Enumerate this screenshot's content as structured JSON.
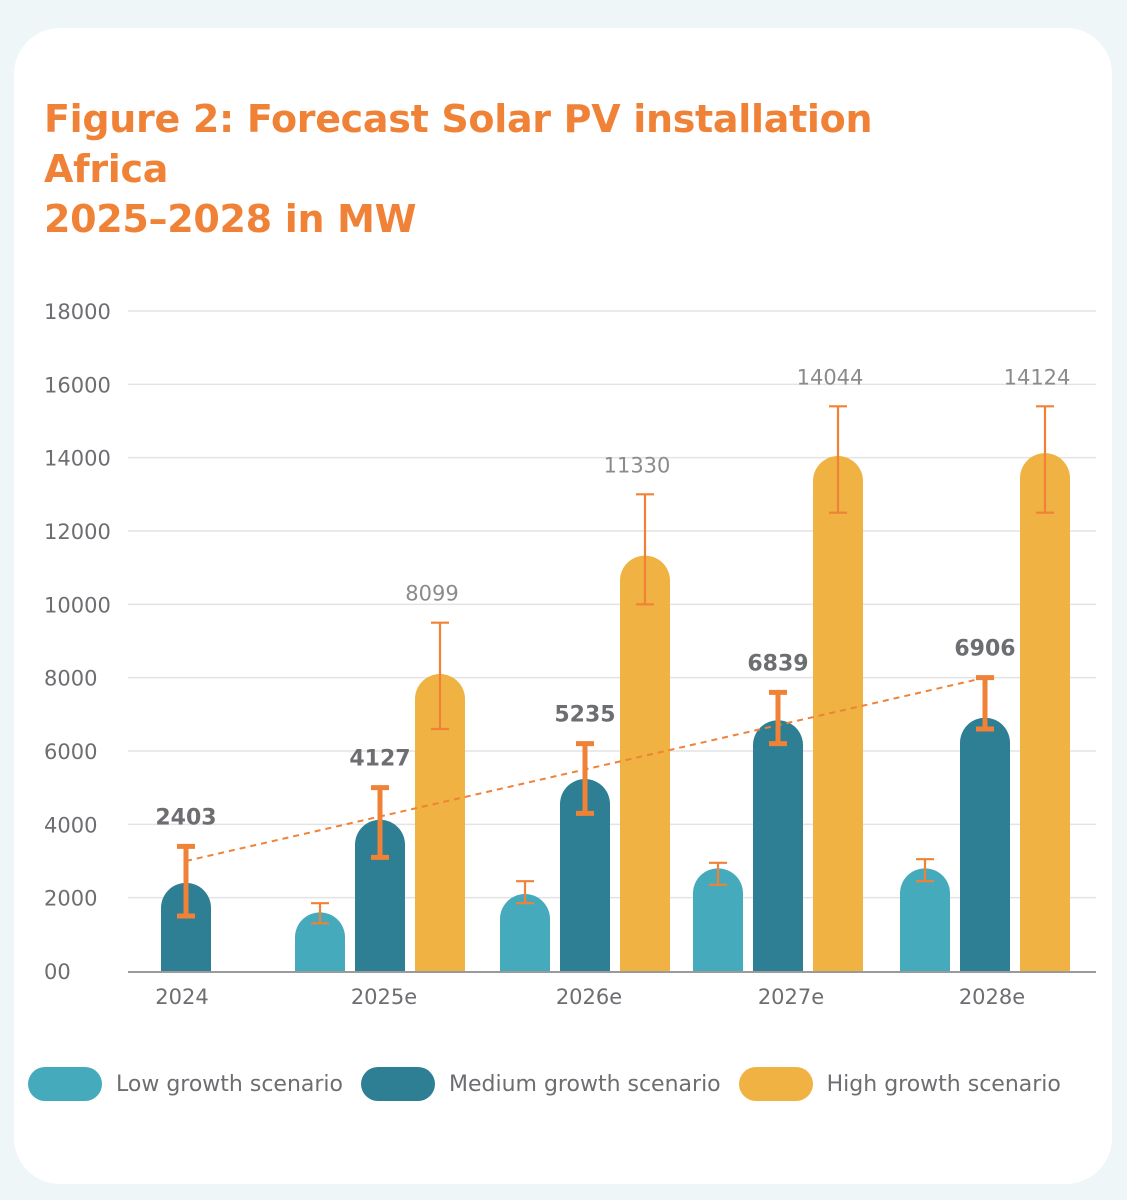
{
  "title_line1": "Figure 2: Forecast Solar PV installation Africa",
  "title_line2": "2025–2028 in MW",
  "colors": {
    "low": "#45aabb",
    "medium": "#2e7f93",
    "high": "#efb243",
    "accent": "#ef8237",
    "axis_text": "#6d6e71",
    "grid": "#e3e3e3"
  },
  "chart_data": {
    "type": "bar",
    "categories": [
      "2024",
      "2025e",
      "2026e",
      "2027e",
      "2028e"
    ],
    "ylim": [
      0,
      18000
    ],
    "yticks": [
      0,
      2000,
      4000,
      6000,
      8000,
      10000,
      12000,
      14000,
      16000,
      18000
    ],
    "ytick_labels": [
      "00",
      "2000",
      "4000",
      "6000",
      "8000",
      "10000",
      "12000",
      "14000",
      "16000",
      "18000"
    ],
    "series": [
      {
        "name": "Low growth scenario",
        "key": "low",
        "values": [
          null,
          1600,
          2100,
          2800,
          2800
        ],
        "error_low": [
          null,
          1300,
          1850,
          2350,
          2450
        ],
        "error_high": [
          null,
          1850,
          2450,
          2950,
          3050
        ],
        "labels": [
          null,
          null,
          null,
          null,
          null
        ]
      },
      {
        "name": "Medium growth scenario",
        "key": "medium",
        "values": [
          2403,
          4127,
          5235,
          6839,
          6906
        ],
        "error_low": [
          1500,
          3100,
          4300,
          6200,
          6600
        ],
        "error_high": [
          3400,
          5000,
          6200,
          7600,
          8000
        ],
        "labels": [
          "2403",
          "4127",
          "5235",
          "6839",
          "6906"
        ]
      },
      {
        "name": "High growth scenario",
        "key": "high",
        "values": [
          null,
          8099,
          11330,
          14044,
          14124
        ],
        "error_low": [
          null,
          6600,
          10000,
          12500,
          12500
        ],
        "error_high": [
          null,
          9500,
          13000,
          15400,
          15400
        ],
        "labels": [
          null,
          "8099",
          "11330",
          "14044",
          "14124"
        ]
      }
    ],
    "trendline": {
      "series": "Medium growth scenario",
      "from": 3000,
      "to": 8000
    },
    "xlabel": "",
    "ylabel": "",
    "legend_position": "bottom"
  }
}
